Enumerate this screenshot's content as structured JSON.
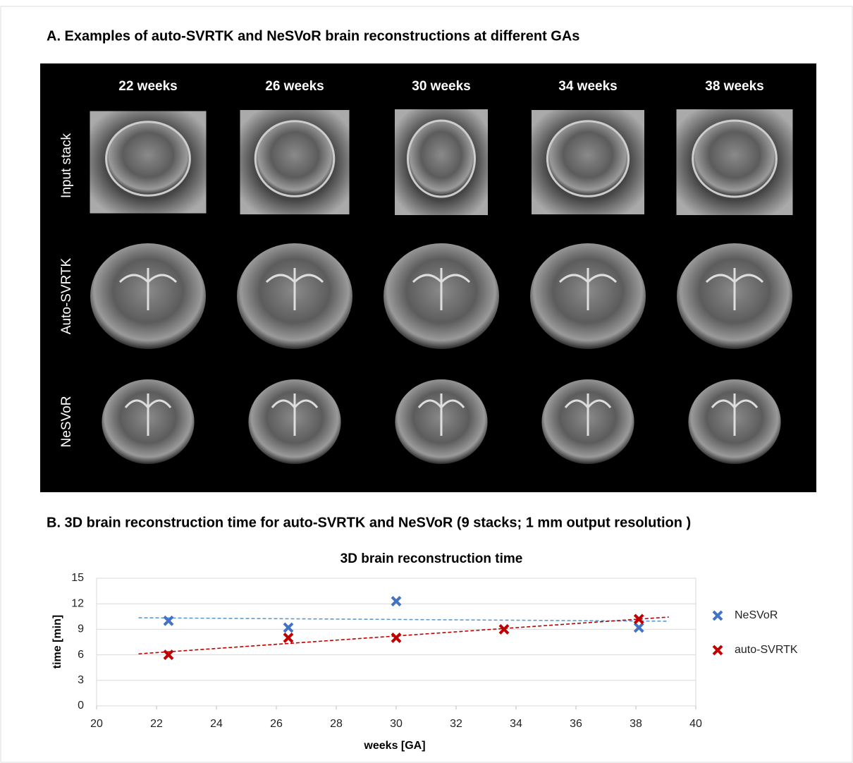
{
  "panel_a": {
    "title": "A. Examples of auto-SVRTK and NeSVoR brain reconstructions at different GAs",
    "columns": [
      "22 weeks",
      "26 weeks",
      "30 weeks",
      "34 weeks",
      "38 weeks"
    ],
    "rows": [
      "Input stack",
      "Auto-SVRTK",
      "NeSVoR"
    ]
  },
  "panel_b": {
    "title": "B. 3D brain reconstruction time for auto-SVRTK and NeSVoR (9 stacks; 1 mm output resolution )"
  },
  "chart_data": {
    "type": "scatter",
    "title": "3D brain reconstruction time",
    "x_label": "weeks [GA]",
    "y_label": "time [min]",
    "xlim": [
      20,
      40
    ],
    "xticks": [
      20,
      22,
      24,
      26,
      28,
      30,
      32,
      34,
      36,
      38,
      40
    ],
    "ylim": [
      0,
      15
    ],
    "yticks": [
      0,
      3,
      6,
      9,
      12,
      15
    ],
    "grid": true,
    "legend": "right",
    "trendline": "linear",
    "series": [
      {
        "name": "NeSVoR",
        "color": "#4472c4",
        "trendline_color": "#5b9bd5",
        "x": [
          22.4,
          26.4,
          30,
          38.1
        ],
        "values": [
          10,
          9.2,
          12.3,
          9.2
        ]
      },
      {
        "name": "auto-SVRTK",
        "color": "#c00000",
        "trendline_color": "#c00000",
        "x": [
          22.4,
          26.4,
          30,
          33.6,
          38.1
        ],
        "values": [
          6,
          8,
          8,
          9,
          10.2
        ]
      }
    ]
  }
}
